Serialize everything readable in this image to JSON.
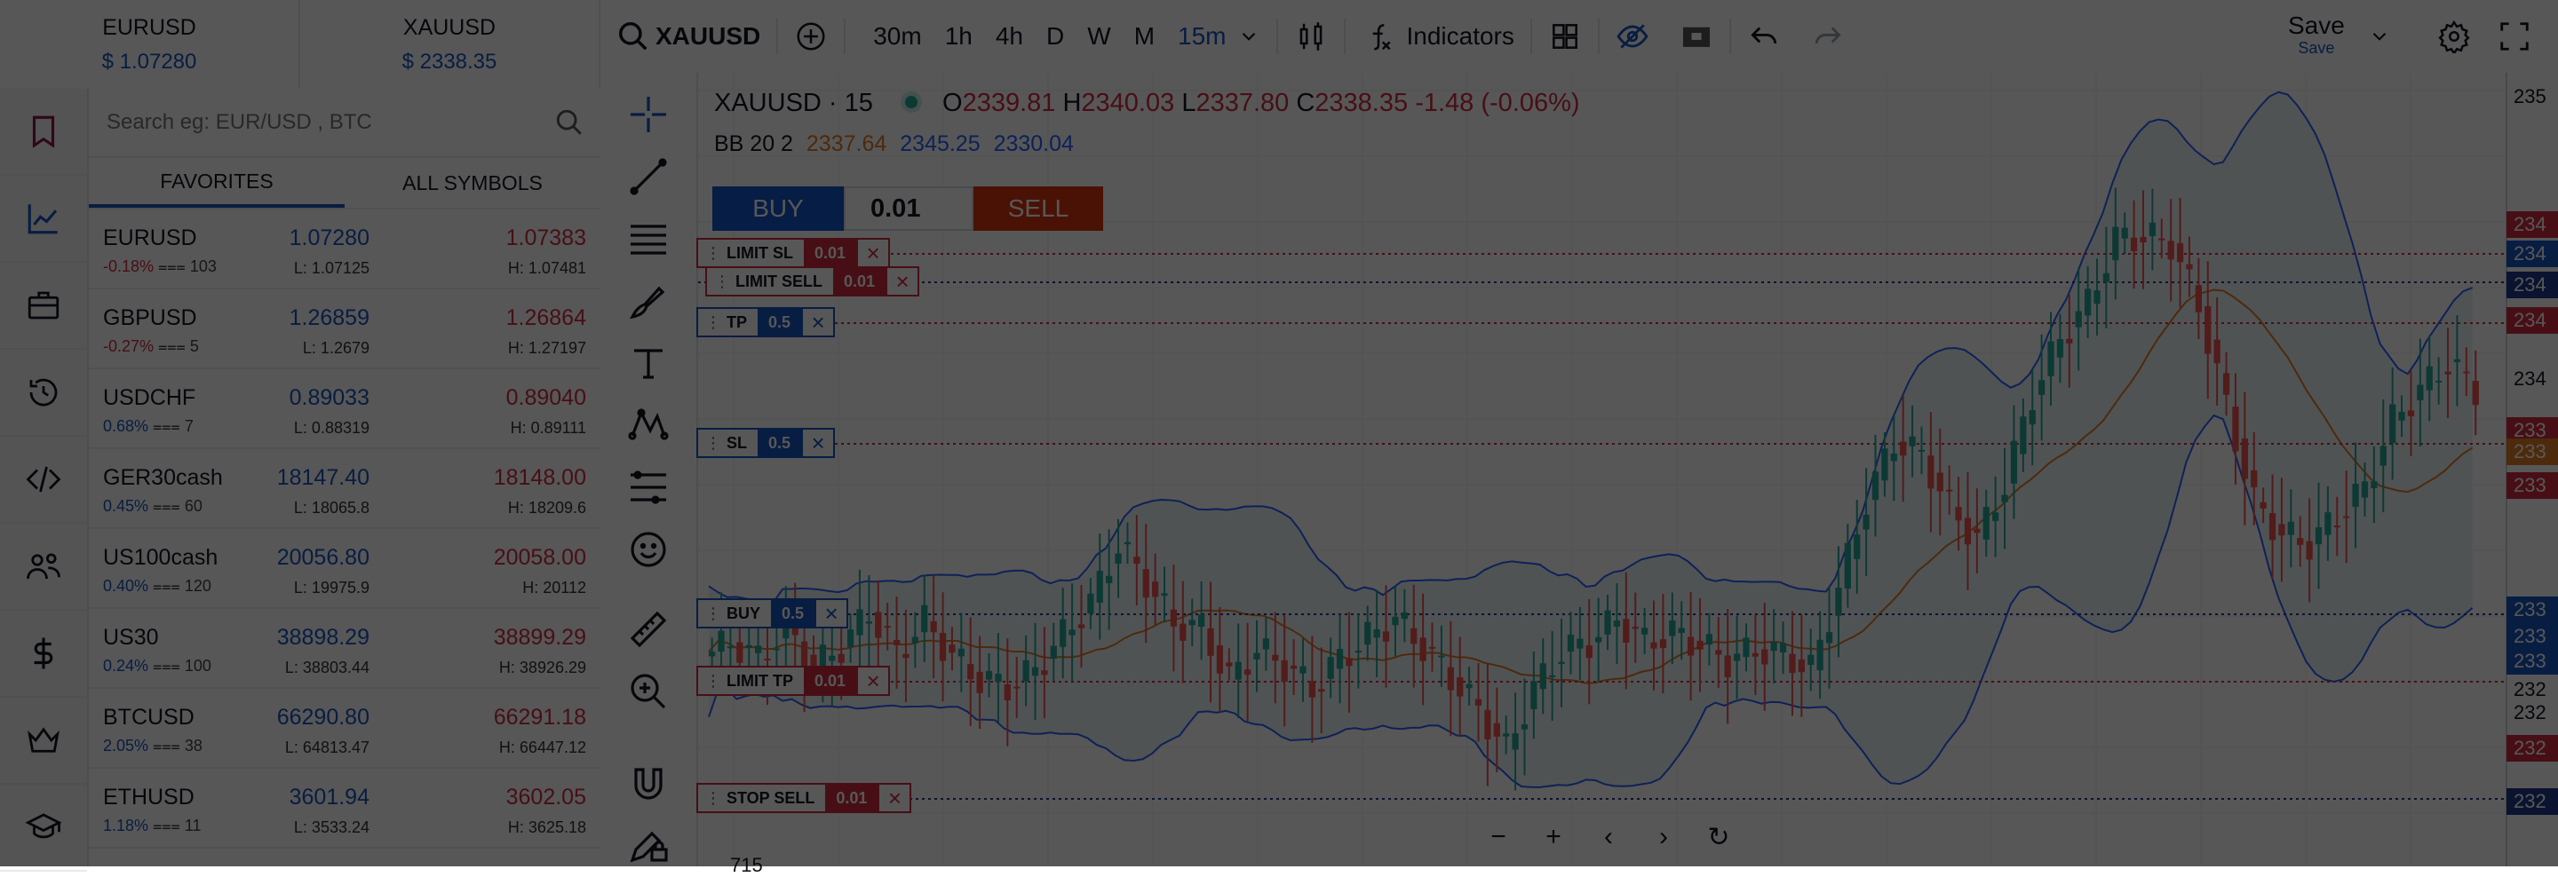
{
  "quotes_header": [
    {
      "symbol": "EURUSD",
      "price": "$ 1.07280"
    },
    {
      "symbol": "XAUUSD",
      "price": "$ 2338.35"
    }
  ],
  "sidebar": {
    "items": [
      {
        "icon": "bookmark-icon"
      },
      {
        "icon": "chart-line-icon"
      },
      {
        "icon": "briefcase-icon"
      },
      {
        "icon": "history-icon"
      },
      {
        "icon": "code-icon"
      },
      {
        "icon": "users-icon"
      },
      {
        "icon": "dollar-icon"
      },
      {
        "icon": "crown-icon"
      },
      {
        "icon": "graduation-cap-icon"
      }
    ]
  },
  "watchlist": {
    "search_placeholder": "Search eg: EUR/USD , BTC",
    "tabs": [
      {
        "label": "FAVORITES"
      },
      {
        "label": "ALL SYMBOLS"
      }
    ],
    "rows": [
      {
        "symbol": "EURUSD",
        "change": "-0.18%",
        "change_dir": "neg",
        "volume": "103",
        "bid": "1.07280",
        "ask": "1.07383",
        "low": "L: 1.07125",
        "high": "H: 1.07481"
      },
      {
        "symbol": "GBPUSD",
        "change": "-0.27%",
        "change_dir": "neg",
        "volume": "5",
        "bid": "1.26859",
        "ask": "1.26864",
        "low": "L: 1.2679",
        "high": "H: 1.27197"
      },
      {
        "symbol": "USDCHF",
        "change": "0.68%",
        "change_dir": "pos",
        "volume": "7",
        "bid": "0.89033",
        "ask": "0.89040",
        "low": "L: 0.88319",
        "high": "H: 0.89111"
      },
      {
        "symbol": "GER30cash",
        "change": "0.45%",
        "change_dir": "pos",
        "volume": "60",
        "bid": "18147.40",
        "ask": "18148.00",
        "low": "L: 18065.8",
        "high": "H: 18209.6"
      },
      {
        "symbol": "US100cash",
        "change": "0.40%",
        "change_dir": "pos",
        "volume": "120",
        "bid": "20056.80",
        "ask": "20058.00",
        "low": "L: 19975.9",
        "high": "H: 20112"
      },
      {
        "symbol": "US30",
        "change": "0.24%",
        "change_dir": "pos",
        "volume": "100",
        "bid": "38898.29",
        "ask": "38899.29",
        "low": "L: 38803.44",
        "high": "H: 38926.29"
      },
      {
        "symbol": "BTCUSD",
        "change": "2.05%",
        "change_dir": "pos",
        "volume": "38",
        "bid": "66290.80",
        "ask": "66291.18",
        "low": "L: 64813.47",
        "high": "H: 66447.12"
      },
      {
        "symbol": "ETHUSD",
        "change": "1.18%",
        "change_dir": "pos",
        "volume": "11",
        "bid": "3601.94",
        "ask": "3602.05",
        "low": "L: 3533.24",
        "high": "H: 3625.18"
      }
    ]
  },
  "toolbar": {
    "symbol": "XAUUSD",
    "timeframes": [
      "30m",
      "1h",
      "4h",
      "D",
      "W",
      "M",
      "15m"
    ],
    "active_timeframe": "15m",
    "indicators_label": "Indicators",
    "save_label": "Save",
    "save_sub": "Save"
  },
  "drawing_tools": [
    "crosshair-icon",
    "trend-line-icon",
    "horizontal-lines-icon",
    "brush-icon",
    "text-icon",
    "pattern-icon",
    "fib-icon",
    "emoji-icon",
    "ruler-icon",
    "zoom-in-icon",
    "magnet-icon",
    "lock-pencil-icon"
  ],
  "chart": {
    "title": "XAUUSD · 15",
    "o_label": "O",
    "o": "2339.81",
    "h_label": "H",
    "h": "2340.03",
    "l_label": "L",
    "l": "2337.80",
    "c_label": "C",
    "c": "2338.35",
    "change": "-1.48 (-0.06%)",
    "bb_label": "BB 20 2",
    "bb_mid": "2337.64",
    "bb_upper": "2345.25",
    "bb_lower": "2330.04",
    "trade_panel": {
      "buy": "BUY",
      "lot": "0.01",
      "sell": "SELL"
    },
    "orders": [
      {
        "label": "LIMIT SL",
        "qty": "0.01",
        "color": "red"
      },
      {
        "label": "LIMIT SELL",
        "qty": "0.01",
        "color": "red"
      },
      {
        "label": "TP",
        "qty": "0.5",
        "color": "blue"
      },
      {
        "label": "SL",
        "qty": "0.5",
        "color": "blue"
      },
      {
        "label": "BUY",
        "qty": "0.5",
        "color": "blue"
      },
      {
        "label": "LIMIT TP",
        "qty": "0.01",
        "color": "red"
      },
      {
        "label": "STOP SELL",
        "qty": "0.01",
        "color": "red"
      }
    ],
    "axis_labels": [
      "235",
      "234",
      "234",
      "234",
      "234",
      "234",
      "233",
      "233",
      "233",
      "233",
      "233",
      "233",
      "232",
      "232",
      "232",
      "232"
    ],
    "bottom_label": "715",
    "colors": {
      "up": "#26a69a",
      "down": "#ef5350",
      "band": "#2962ff",
      "basis": "#e07b25",
      "fill": "#e3eef3"
    }
  },
  "chart_data": {
    "type": "candlestick",
    "title": "XAUUSD · 15",
    "indicator": "BB 20 2",
    "bb_values": {
      "basis": 2337.64,
      "upper": 2345.25,
      "lower": 2330.04
    },
    "ohlc_last": {
      "open": 2339.81,
      "high": 2340.03,
      "low": 2337.8,
      "close": 2338.35
    },
    "candles_close_path": [
      2327.6,
      2326.9,
      2328.2,
      2326.5,
      2327.4,
      2328.9,
      2327.1,
      2328.5,
      2327.0,
      2326.0,
      2325.7,
      2326.4,
      2327.9,
      2329.3,
      2331.8,
      2330.2,
      2328.4,
      2328.2,
      2326.0,
      2327.3,
      2326.6,
      2325.6,
      2326.9,
      2327.8,
      2328.6,
      2327.4,
      2326.1,
      2324.7,
      2323.0,
      2325.6,
      2327.2,
      2327.6,
      2328.6,
      2327.6,
      2328.0,
      2327.5,
      2326.8,
      2327.3,
      2327.1,
      2326.4,
      2329.9,
      2333.7,
      2336.2,
      2335.6,
      2333.4,
      2332.0,
      2334.4,
      2338.2,
      2340.6,
      2342.1,
      2344.9,
      2345.0,
      2344.7,
      2342.0,
      2337.7,
      2333.6,
      2332.2,
      2331.8,
      2333.0,
      2334.2,
      2337.1,
      2338.4,
      2339.6,
      2338.4
    ]
  }
}
